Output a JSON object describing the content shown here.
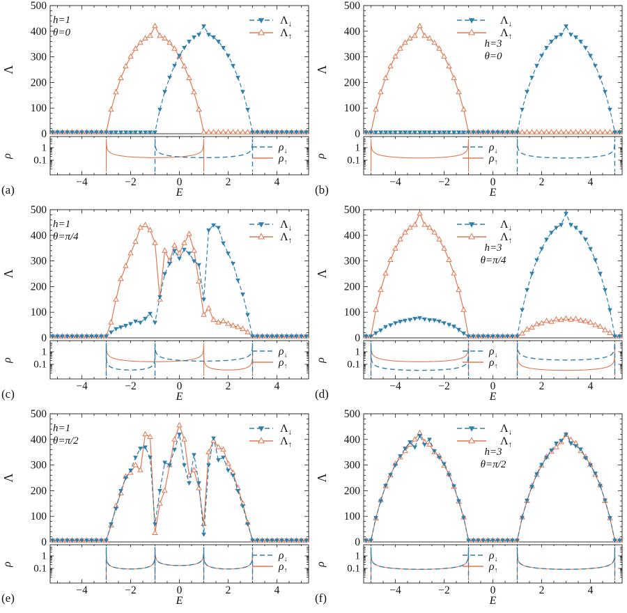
{
  "figure": {
    "bg": "#ffffff",
    "axis_color": "#1a1a1a",
    "colors": {
      "lambda_down": "#2d7fae",
      "lambda_up": "#e4764e"
    }
  },
  "axes": {
    "y_label": "Λ",
    "y2_label": "ρ",
    "x_label": "E",
    "y_range": [
      0,
      500
    ],
    "x_range": [
      -5.3,
      5.3
    ],
    "y_ticks": [
      0,
      100,
      200,
      300,
      400,
      500
    ],
    "x_ticks": [
      {
        "v": -4,
        "label": "−4"
      },
      {
        "v": -2,
        "label": "−2"
      },
      {
        "v": 0,
        "label": "0"
      },
      {
        "v": 2,
        "label": "2"
      },
      {
        "v": 4,
        "label": "4"
      }
    ],
    "rho_ticks": [
      {
        "v": 1,
        "label": "1"
      },
      {
        "v": 0.1,
        "label": "0.1"
      }
    ],
    "rho_scale": "log"
  },
  "legend": {
    "lambda": [
      {
        "series": "down",
        "sym": "Λ",
        "sub": "↓"
      },
      {
        "series": "up",
        "sym": "Λ",
        "sub": "↑"
      }
    ],
    "rho": [
      {
        "series": "down",
        "sym": "ρ",
        "sub": "↓"
      },
      {
        "series": "up",
        "sym": "ρ",
        "sub": "↑"
      }
    ]
  },
  "chart_data": [
    {
      "id": "a",
      "letter": "(a)",
      "type": "line",
      "params": [
        "h=1",
        "θ=0"
      ],
      "layout": {
        "params": "left",
        "legend": "right"
      },
      "lambda": {
        "e_start": -5.2,
        "e_step": 0.2,
        "down": [
          6,
          6,
          6,
          6,
          6,
          6,
          6,
          6,
          6,
          6,
          6,
          6,
          6,
          6,
          6,
          6,
          6,
          6,
          6,
          6,
          6,
          6,
          95,
          164,
          220,
          266,
          305,
          336,
          360,
          377,
          387,
          420,
          387,
          377,
          360,
          336,
          305,
          266,
          220,
          164,
          95,
          6,
          6,
          6,
          6,
          6,
          6,
          6,
          6,
          6,
          6,
          6,
          6
        ],
        "up": [
          6,
          6,
          6,
          6,
          6,
          6,
          6,
          6,
          6,
          6,
          6,
          6,
          94,
          162,
          217,
          263,
          301,
          332,
          355,
          372,
          382,
          420,
          382,
          372,
          355,
          332,
          301,
          263,
          217,
          162,
          94,
          6,
          6,
          6,
          6,
          6,
          6,
          6,
          6,
          6,
          6,
          6,
          6,
          6,
          6,
          6,
          6,
          6,
          6,
          6,
          6,
          6,
          6
        ]
      },
      "rho": {
        "down": [
          {
            "band": [
              -1,
              3
            ],
            "level": 0.16
          }
        ],
        "up": [
          {
            "band": [
              -3,
              1
            ],
            "level": 0.16
          }
        ]
      }
    },
    {
      "id": "b",
      "letter": "(b)",
      "type": "line",
      "params": [
        "h=3",
        "θ=0"
      ],
      "layout": {
        "params": "center",
        "legend": "center"
      },
      "lambda": {
        "e_start": -5.2,
        "e_step": 0.2,
        "down": [
          6,
          6,
          6,
          6,
          6,
          6,
          6,
          6,
          6,
          6,
          6,
          6,
          6,
          6,
          6,
          6,
          6,
          6,
          6,
          6,
          6,
          6,
          6,
          6,
          6,
          6,
          6,
          6,
          6,
          6,
          6,
          6,
          95,
          164,
          220,
          266,
          305,
          336,
          360,
          377,
          387,
          420,
          387,
          377,
          360,
          336,
          305,
          266,
          220,
          164,
          95,
          6,
          6
        ],
        "up": [
          6,
          6,
          94,
          162,
          217,
          263,
          301,
          332,
          355,
          372,
          382,
          420,
          382,
          372,
          355,
          332,
          301,
          263,
          217,
          162,
          94,
          6,
          6,
          6,
          6,
          6,
          6,
          6,
          6,
          6,
          6,
          6,
          6,
          6,
          6,
          6,
          6,
          6,
          6,
          6,
          6,
          6,
          6,
          6,
          6,
          6,
          6,
          6,
          6,
          6,
          6,
          6,
          6
        ]
      },
      "rho": {
        "down": [
          {
            "band": [
              1,
              5
            ],
            "level": 0.15
          }
        ],
        "up": [
          {
            "band": [
              -5,
              -1
            ],
            "level": 0.15
          }
        ]
      }
    },
    {
      "id": "c",
      "letter": "(c)",
      "type": "line",
      "params": [
        "h=1",
        "θ=π/4"
      ],
      "layout": {
        "params": "left",
        "legend": "right"
      },
      "lambda": {
        "e_start": -5.2,
        "e_step": 0.2,
        "down": [
          6,
          6,
          6,
          6,
          6,
          6,
          6,
          6,
          6,
          6,
          6,
          6,
          22,
          35,
          42,
          48,
          55,
          65,
          60,
          75,
          95,
          60,
          160,
          250,
          290,
          340,
          310,
          345,
          330,
          300,
          285,
          150,
          420,
          440,
          430,
          370,
          330,
          290,
          225,
          170,
          90,
          6,
          6,
          6,
          6,
          6,
          6,
          6,
          6,
          6,
          6,
          6,
          6
        ],
        "up": [
          6,
          6,
          6,
          6,
          6,
          6,
          6,
          6,
          6,
          6,
          6,
          6,
          60,
          150,
          230,
          280,
          330,
          375,
          430,
          440,
          420,
          370,
          150,
          340,
          300,
          360,
          330,
          370,
          405,
          340,
          220,
          90,
          115,
          70,
          60,
          65,
          55,
          48,
          42,
          35,
          22,
          6,
          6,
          6,
          6,
          6,
          6,
          6,
          6,
          6,
          6,
          6,
          6
        ]
      },
      "rho": {
        "down": [
          {
            "band": [
              -3,
              -1
            ],
            "level": 0.035
          },
          {
            "band": [
              -1,
              3
            ],
            "level": 0.18
          }
        ],
        "up": [
          {
            "band": [
              -3,
              1
            ],
            "level": 0.16
          },
          {
            "band": [
              1,
              3
            ],
            "level": 0.035
          }
        ]
      }
    },
    {
      "id": "d",
      "letter": "(d)",
      "type": "line",
      "params": [
        "h=3",
        "θ=π/4"
      ],
      "layout": {
        "params": "center",
        "legend": "center"
      },
      "lambda": {
        "e_start": -5.2,
        "e_step": 0.2,
        "down": [
          6,
          6,
          19,
          30,
          43,
          50,
          58,
          64,
          68,
          71,
          75,
          78,
          73,
          70,
          69,
          65,
          58,
          52,
          45,
          32,
          18,
          6,
          6,
          6,
          6,
          6,
          6,
          6,
          6,
          6,
          6,
          6,
          109,
          187,
          251,
          304,
          348,
          384,
          411,
          430,
          441,
          485,
          441,
          430,
          411,
          384,
          348,
          304,
          251,
          187,
          109,
          6,
          6
        ],
        "up": [
          6,
          6,
          109,
          187,
          251,
          304,
          348,
          384,
          411,
          430,
          441,
          485,
          441,
          430,
          411,
          384,
          348,
          304,
          251,
          187,
          109,
          6,
          6,
          6,
          6,
          6,
          6,
          6,
          6,
          6,
          6,
          6,
          17,
          33,
          40,
          53,
          57,
          66,
          63,
          72,
          70,
          75,
          71,
          74,
          68,
          64,
          60,
          50,
          44,
          30,
          19,
          6,
          6
        ]
      },
      "rho": {
        "down": [
          {
            "band": [
              -5,
              -1
            ],
            "level": 0.033
          },
          {
            "band": [
              1,
              5
            ],
            "level": 0.22
          }
        ],
        "up": [
          {
            "band": [
              -5,
              -1
            ],
            "level": 0.16
          },
          {
            "band": [
              1,
              5
            ],
            "level": 0.033
          }
        ]
      }
    },
    {
      "id": "e",
      "letter": "(e)",
      "type": "line",
      "params": [
        "h=1",
        "θ=π/2"
      ],
      "layout": {
        "params": "left",
        "legend": "right"
      },
      "lambda": {
        "e_start": -5.2,
        "e_step": 0.2,
        "down": [
          6,
          6,
          6,
          6,
          6,
          6,
          6,
          6,
          6,
          6,
          6,
          6,
          70,
          130,
          200,
          250,
          280,
          330,
          365,
          370,
          330,
          70,
          200,
          310,
          300,
          360,
          420,
          300,
          230,
          340,
          230,
          30,
          300,
          405,
          320,
          330,
          280,
          260,
          200,
          140,
          70,
          6,
          6,
          6,
          6,
          6,
          6,
          6,
          6,
          6,
          6,
          6,
          6
        ],
        "up": [
          6,
          6,
          6,
          6,
          6,
          6,
          6,
          6,
          6,
          6,
          6,
          6,
          65,
          140,
          190,
          255,
          270,
          300,
          280,
          420,
          410,
          35,
          150,
          200,
          300,
          400,
          455,
          400,
          260,
          280,
          210,
          70,
          350,
          395,
          370,
          360,
          305,
          270,
          210,
          150,
          75,
          6,
          6,
          6,
          6,
          6,
          6,
          6,
          6,
          6,
          6,
          6,
          6
        ]
      },
      "rho": {
        "down": [
          {
            "band": [
              -3,
              -1
            ],
            "level": 0.09
          },
          {
            "band": [
              -1,
              1
            ],
            "level": 0.17
          },
          {
            "band": [
              1,
              3
            ],
            "level": 0.09
          }
        ],
        "up": [
          {
            "band": [
              -3,
              -1
            ],
            "level": 0.09
          },
          {
            "band": [
              -1,
              1
            ],
            "level": 0.17
          },
          {
            "band": [
              1,
              3
            ],
            "level": 0.09
          }
        ]
      }
    },
    {
      "id": "f",
      "letter": "(f)",
      "type": "line",
      "params": [
        "h=3",
        "θ=π/2"
      ],
      "layout": {
        "params": "center",
        "legend": "center"
      },
      "lambda": {
        "e_start": -5.2,
        "e_step": 0.2,
        "down": [
          6,
          6,
          94,
          160,
          220,
          262,
          300,
          335,
          365,
          390,
          370,
          415,
          380,
          400,
          355,
          330,
          305,
          262,
          218,
          160,
          95,
          6,
          6,
          6,
          6,
          6,
          6,
          6,
          6,
          6,
          6,
          6,
          95,
          162,
          216,
          265,
          302,
          330,
          358,
          385,
          395,
          420,
          385,
          375,
          362,
          328,
          300,
          268,
          220,
          163,
          94,
          6,
          6
        ],
        "up": [
          6,
          6,
          92,
          163,
          218,
          260,
          305,
          330,
          355,
          380,
          400,
          425,
          390,
          380,
          350,
          335,
          298,
          265,
          215,
          158,
          96,
          6,
          6,
          6,
          6,
          6,
          6,
          6,
          6,
          6,
          6,
          6,
          96,
          160,
          218,
          262,
          298,
          332,
          352,
          370,
          390,
          418,
          398,
          385,
          355,
          332,
          302,
          262,
          222,
          160,
          93,
          6,
          6
        ]
      },
      "rho": {
        "down": [
          {
            "band": [
              -5,
              -1
            ],
            "level": 0.085
          },
          {
            "band": [
              1,
              5
            ],
            "level": 0.085
          }
        ],
        "up": [
          {
            "band": [
              -5,
              -1
            ],
            "level": 0.085
          },
          {
            "band": [
              1,
              5
            ],
            "level": 0.085
          }
        ]
      }
    }
  ]
}
